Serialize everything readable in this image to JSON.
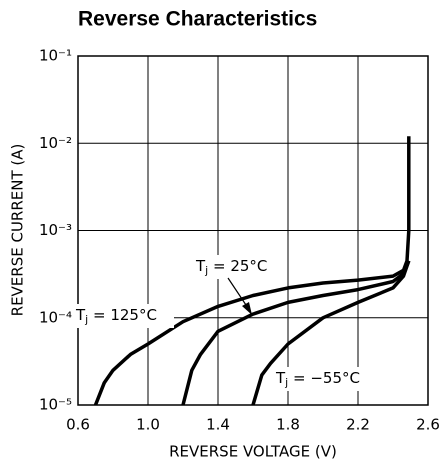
{
  "chart_data": {
    "type": "line",
    "title": "Reverse Characteristics",
    "xlabel": "REVERSE VOLTAGE (V)",
    "ylabel": "REVERSE CURRENT (A)",
    "xlim": [
      0.6,
      2.6
    ],
    "xticks": [
      0.6,
      {
        "value": 1,
        "label": "1.0"
      },
      1.4,
      1.8,
      2.2,
      2.6
    ],
    "ylim": [
      1e-05,
      0.1
    ],
    "log_y": true,
    "grid": true,
    "yticks": [
      {
        "value": 1e-05,
        "label": "10⁻⁵"
      },
      {
        "value": 0.0001,
        "label": "10⁻⁴"
      },
      {
        "value": 0.001,
        "label": "10⁻³"
      },
      {
        "value": 0.01,
        "label": "10⁻²"
      },
      {
        "value": 0.1,
        "label": "10⁻¹"
      }
    ],
    "series": [
      {
        "color": "#000000",
        "x": [
          0.7,
          0.75,
          0.8,
          0.9,
          1.0,
          1.2,
          1.4,
          1.6,
          1.8,
          2.0,
          2.2,
          2.4,
          2.46,
          2.48,
          2.49,
          2.49
        ],
        "values": [
          1e-05,
          1.8e-05,
          2.5e-05,
          3.8e-05,
          5e-05,
          9e-05,
          0.000135,
          0.00018,
          0.00022,
          0.00025,
          0.00027,
          0.0003,
          0.00035,
          0.00045,
          0.001,
          0.012
        ]
      },
      {
        "color": "#000000",
        "x": [
          1.2,
          1.25,
          1.3,
          1.4,
          1.6,
          1.8,
          2.0,
          2.2,
          2.4,
          2.46,
          2.49
        ],
        "values": [
          1e-05,
          2.5e-05,
          3.8e-05,
          7e-05,
          0.00011,
          0.00015,
          0.00018,
          0.00021,
          0.00026,
          0.00032,
          0.00045
        ]
      },
      {
        "color": "#000000",
        "x": [
          1.6,
          1.65,
          1.7,
          1.8,
          2.0,
          2.2,
          2.4,
          2.46,
          2.49
        ],
        "values": [
          1e-05,
          2.2e-05,
          3e-05,
          5e-05,
          0.0001,
          0.00015,
          0.00022,
          0.0003,
          0.00045
        ]
      }
    ],
    "annotations": [
      {
        "main": "T",
        "sub": "j",
        "rest": " = 125°C"
      },
      {
        "main": "T",
        "sub": "j",
        "rest": " = 25°C"
      },
      {
        "main": "T",
        "sub": "j",
        "rest": " = −55°C"
      }
    ]
  }
}
